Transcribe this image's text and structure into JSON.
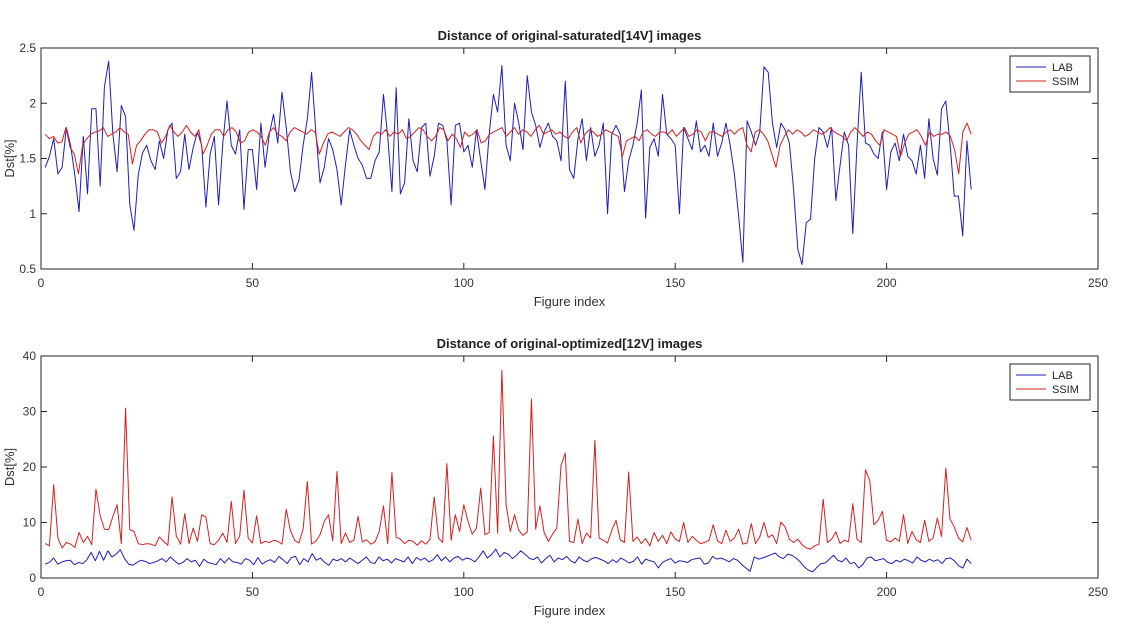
{
  "chart_data": [
    {
      "type": "line",
      "title": "Distance of original-saturated[14V] images",
      "xlabel": "Figure index",
      "ylabel": "Dst[%]",
      "xlim": [
        0,
        250
      ],
      "ylim": [
        0.5,
        2.5
      ],
      "xticks": [
        0,
        50,
        100,
        150,
        200,
        250
      ],
      "yticks": [
        0.5,
        1,
        1.5,
        2,
        2.5
      ],
      "legend": "top-right",
      "grid": false,
      "x_start": 1,
      "x_end": 220,
      "series": [
        {
          "name": "LAB",
          "color": "#1f1fb4",
          "values": [
            1.42,
            1.52,
            1.68,
            1.36,
            1.42,
            1.78,
            1.62,
            1.35,
            1.02,
            1.7,
            1.18,
            1.95,
            1.95,
            1.25,
            2.15,
            2.38,
            1.72,
            1.38,
            1.98,
            1.88,
            1.08,
            0.85,
            1.35,
            1.55,
            1.62,
            1.48,
            1.4,
            1.66,
            1.5,
            1.76,
            1.82,
            1.32,
            1.38,
            1.72,
            1.4,
            1.6,
            1.74,
            1.62,
            1.06,
            1.54,
            1.7,
            1.08,
            1.64,
            2.02,
            1.62,
            1.54,
            1.76,
            1.04,
            1.58,
            1.58,
            1.22,
            1.82,
            1.42,
            1.72,
            1.9,
            1.64,
            2.1,
            1.78,
            1.38,
            1.2,
            1.3,
            1.62,
            1.86,
            2.28,
            1.74,
            1.28,
            1.42,
            1.68,
            1.58,
            1.4,
            1.08,
            1.44,
            1.76,
            1.62,
            1.5,
            1.44,
            1.32,
            1.32,
            1.48,
            1.56,
            2.08,
            1.7,
            1.2,
            2.14,
            1.18,
            1.28,
            1.86,
            1.48,
            1.38,
            1.78,
            1.82,
            1.34,
            1.52,
            1.82,
            1.8,
            1.66,
            1.08,
            1.8,
            1.82,
            1.56,
            1.62,
            1.42,
            1.76,
            1.48,
            1.22,
            1.72,
            2.08,
            1.92,
            2.34,
            1.62,
            1.48,
            2.0,
            1.82,
            1.58,
            2.25,
            1.92,
            1.8,
            1.6,
            1.74,
            1.82,
            1.7,
            1.66,
            1.48,
            2.2,
            1.4,
            1.32,
            1.68,
            1.86,
            1.48,
            1.78,
            1.52,
            1.62,
            1.82,
            1.0,
            1.72,
            1.8,
            1.72,
            1.2,
            1.48,
            1.62,
            1.82,
            2.12,
            0.96,
            1.6,
            1.68,
            1.52,
            2.08,
            1.72,
            1.68,
            1.62,
            1.0,
            1.78,
            1.68,
            1.58,
            1.84,
            1.56,
            1.62,
            1.52,
            1.82,
            1.52,
            1.64,
            1.82,
            1.62,
            1.36,
            0.98,
            0.56,
            1.84,
            1.74,
            1.62,
            1.74,
            2.33,
            2.28,
            1.82,
            1.6,
            1.82,
            1.76,
            1.64,
            1.22,
            0.68,
            0.54,
            0.92,
            0.95,
            1.5,
            1.78,
            1.74,
            1.6,
            1.78,
            1.12,
            1.44,
            1.74,
            1.62,
            0.82,
            1.62,
            2.28,
            1.64,
            1.62,
            1.54,
            1.5,
            1.74,
            1.22,
            1.56,
            1.64,
            1.48,
            1.72,
            1.52,
            1.48,
            1.36,
            1.62,
            1.32,
            1.86,
            1.5,
            1.35,
            1.95,
            2.02,
            1.64,
            1.16,
            1.16,
            0.8,
            1.66,
            1.22
          ]
        },
        {
          "name": "SSIM",
          "color": "#d42020",
          "values": [
            1.72,
            1.68,
            1.7,
            1.64,
            1.65,
            1.78,
            1.6,
            1.54,
            1.36,
            1.62,
            1.68,
            1.72,
            1.74,
            1.75,
            1.78,
            1.7,
            1.72,
            1.74,
            1.78,
            1.74,
            1.72,
            1.45,
            1.62,
            1.66,
            1.72,
            1.76,
            1.76,
            1.74,
            1.64,
            1.7,
            1.8,
            1.74,
            1.7,
            1.74,
            1.8,
            1.74,
            1.7,
            1.76,
            1.54,
            1.62,
            1.72,
            1.76,
            1.76,
            1.7,
            1.76,
            1.78,
            1.74,
            1.64,
            1.66,
            1.74,
            1.76,
            1.74,
            1.7,
            1.62,
            1.74,
            1.78,
            1.72,
            1.7,
            1.66,
            1.74,
            1.78,
            1.76,
            1.74,
            1.72,
            1.76,
            1.74,
            1.54,
            1.64,
            1.72,
            1.74,
            1.72,
            1.7,
            1.74,
            1.78,
            1.76,
            1.72,
            1.66,
            1.62,
            1.58,
            1.7,
            1.74,
            1.72,
            1.76,
            1.7,
            1.74,
            1.72,
            1.76,
            1.68,
            1.7,
            1.74,
            1.78,
            1.76,
            1.7,
            1.66,
            1.7,
            1.78,
            1.76,
            1.66,
            1.72,
            1.68,
            1.6,
            1.74,
            1.7,
            1.72,
            1.76,
            1.64,
            1.66,
            1.72,
            1.74,
            1.76,
            1.78,
            1.7,
            1.74,
            1.78,
            1.72,
            1.76,
            1.74,
            1.7,
            1.76,
            1.8,
            1.72,
            1.74,
            1.76,
            1.72,
            1.74,
            1.7,
            1.68,
            1.74,
            1.78,
            1.64,
            1.72,
            1.76,
            1.74,
            1.7,
            1.72,
            1.76,
            1.74,
            1.72,
            1.7,
            1.52,
            1.66,
            1.68,
            1.7,
            1.66,
            1.74,
            1.76,
            1.72,
            1.7,
            1.74,
            1.74,
            1.72,
            1.76,
            1.7,
            1.74,
            1.78,
            1.7,
            1.72,
            1.76,
            1.74,
            1.66,
            1.74,
            1.74,
            1.72,
            1.7,
            1.74,
            1.76,
            1.72,
            1.76,
            1.78,
            1.62,
            1.56,
            1.74,
            1.76,
            1.72,
            1.66,
            1.54,
            1.42,
            1.62,
            1.7,
            1.76,
            1.72,
            1.76,
            1.74,
            1.7,
            1.72,
            1.76,
            1.74,
            1.72,
            1.74,
            1.78,
            1.74,
            1.72,
            1.7,
            1.66,
            1.74,
            1.78,
            1.74,
            1.7,
            1.74,
            1.72,
            1.66,
            1.62,
            1.76,
            1.74,
            1.72,
            1.7,
            1.52,
            1.64,
            1.72,
            1.74,
            1.76,
            1.7,
            1.62,
            1.74,
            1.7,
            1.72,
            1.72,
            1.74,
            1.7,
            1.58,
            1.36,
            1.74,
            1.82,
            1.72
          ]
        }
      ]
    },
    {
      "type": "line",
      "title": "Distance of original-optimized[12V] images",
      "xlabel": "Figure index",
      "ylabel": "Dst[%]",
      "xlim": [
        0,
        250
      ],
      "ylim": [
        0,
        40
      ],
      "xticks": [
        0,
        50,
        100,
        150,
        200,
        250
      ],
      "yticks": [
        0,
        10,
        20,
        30,
        40
      ],
      "legend": "top-right",
      "grid": false,
      "x_start": 1,
      "x_end": 220,
      "series": [
        {
          "name": "LAB",
          "color": "#1f1fb4",
          "values": [
            2.5,
            2.8,
            3.6,
            2.5,
            2.9,
            3.1,
            3.2,
            2.4,
            2.8,
            2.6,
            3.3,
            4.6,
            3.1,
            4.8,
            3.2,
            4.9,
            3.8,
            4.3,
            5.1,
            3.5,
            2.5,
            2.3,
            2.8,
            3.2,
            3.0,
            2.6,
            2.8,
            3.1,
            3.5,
            2.9,
            3.8,
            3.1,
            2.5,
            2.8,
            3.5,
            2.9,
            3.2,
            2.1,
            3.4,
            2.8,
            2.6,
            2.4,
            3.5,
            2.7,
            3.6,
            2.9,
            2.8,
            2.5,
            3.5,
            3.2,
            2.4,
            3.7,
            2.5,
            3.0,
            3.3,
            2.8,
            3.9,
            3.3,
            2.6,
            3.7,
            3.9,
            2.4,
            3.5,
            2.9,
            4.4,
            3.2,
            3.6,
            2.8,
            2.3,
            3.4,
            3.1,
            3.5,
            2.9,
            3.6,
            3.1,
            2.6,
            3.2,
            3.8,
            2.8,
            2.6,
            3.8,
            3.1,
            3.4,
            2.7,
            3.5,
            3.2,
            2.9,
            3.8,
            2.6,
            3.7,
            3.2,
            3.6,
            2.9,
            3.3,
            4.2,
            3.1,
            3.8,
            2.9,
            3.6,
            3.9,
            3.2,
            3.6,
            3.4,
            2.9,
            3.8,
            4.9,
            3.6,
            4.2,
            5.2,
            3.8,
            4.6,
            4.3,
            3.5,
            4.1,
            4.9,
            4.3,
            3.6,
            3.3,
            3.8,
            2.7,
            3.5,
            4.1,
            2.9,
            3.6,
            3.3,
            3.9,
            3.1,
            2.7,
            3.8,
            3.2,
            2.9,
            3.5,
            3.7,
            3.4,
            3.1,
            2.6,
            3.3,
            2.8,
            3.6,
            3.2,
            2.7,
            3.0,
            3.8,
            2.5,
            3.4,
            3.1,
            2.9,
            1.8,
            2.8,
            3.2,
            3.5,
            2.7,
            3.1,
            3.0,
            2.8,
            3.3,
            3.5,
            3.6,
            2.5,
            2.7,
            3.9,
            3.4,
            3.6,
            3.3,
            2.9,
            3.5,
            3.2,
            2.4,
            1.8,
            1.2,
            3.8,
            3.4,
            3.6,
            3.9,
            4.2,
            4.5,
            3.8,
            3.5,
            4.3,
            4.1,
            3.6,
            2.9,
            2.0,
            1.4,
            1.1,
            1.9,
            2.6,
            2.7,
            3.4,
            4.1,
            3.2,
            2.9,
            3.6,
            2.6,
            2.8,
            1.8,
            2.4,
            3.6,
            3.8,
            3.1,
            3.3,
            3.5,
            2.8,
            2.6,
            3.2,
            2.9,
            3.4,
            3.1,
            2.7,
            3.8,
            3.2,
            2.9,
            3.4,
            3.0,
            3.3,
            2.6,
            3.5,
            3.6,
            3.1,
            2.2,
            1.8,
            3.4,
            2.6
          ]
        },
        {
          "name": "SSIM",
          "color": "#d42020",
          "values": [
            6.2,
            5.8,
            16.8,
            7.2,
            5.4,
            6.4,
            6.1,
            5.5,
            8.2,
            6.4,
            7.5,
            6.0,
            16.0,
            11.2,
            8.8,
            8.7,
            11.1,
            13.2,
            6.2,
            30.6,
            8.7,
            8.4,
            6.2,
            6.0,
            6.2,
            6.1,
            5.8,
            7.4,
            6.6,
            5.9,
            14.6,
            7.6,
            6.1,
            11.6,
            6.2,
            9.0,
            6.6,
            11.4,
            11.0,
            6.2,
            6.0,
            6.8,
            8.1,
            6.4,
            13.8,
            6.2,
            7.6,
            15.8,
            7.2,
            6.3,
            11.2,
            6.2,
            6.6,
            6.4,
            6.8,
            6.6,
            6.1,
            12.4,
            8.5,
            6.8,
            6.3,
            8.8,
            17.4,
            6.1,
            6.6,
            7.8,
            10.2,
            11.4,
            6.7,
            19.2,
            6.2,
            8.1,
            6.4,
            6.8,
            11.1,
            6.5,
            6.9,
            6.1,
            6.5,
            8.4,
            13.0,
            6.2,
            19.0,
            7.4,
            7.0,
            6.2,
            6.8,
            6.6,
            5.9,
            6.7,
            6.1,
            7.0,
            14.6,
            7.2,
            6.4,
            20.6,
            6.8,
            11.4,
            8.4,
            13.2,
            10.2,
            7.9,
            9.0,
            16.2,
            7.8,
            8.2,
            25.6,
            8.1,
            37.4,
            13.3,
            8.4,
            11.4,
            8.6,
            7.7,
            8.3,
            32.2,
            8.8,
            13.0,
            8.2,
            6.6,
            7.9,
            9.0,
            20.3,
            22.5,
            6.6,
            6.4,
            10.6,
            6.2,
            8.1,
            7.2,
            24.8,
            7.2,
            6.8,
            6.3,
            8.6,
            10.4,
            6.9,
            6.4,
            19.1,
            6.6,
            7.4,
            6.2,
            7.1,
            5.8,
            8.2,
            6.6,
            7.7,
            6.2,
            8.3,
            7.0,
            6.6,
            10.0,
            6.4,
            7.5,
            6.8,
            6.2,
            6.4,
            6.8,
            9.6,
            6.7,
            6.2,
            8.6,
            6.6,
            7.2,
            8.8,
            6.1,
            6.3,
            9.8,
            6.2,
            7.4,
            10.0,
            7.3,
            7.8,
            6.2,
            10.1,
            9.2,
            7.0,
            6.4,
            7.0,
            6.0,
            5.4,
            5.2,
            5.8,
            6.1,
            14.2,
            6.4,
            7.0,
            8.3,
            6.2,
            6.8,
            6.5,
            13.4,
            7.0,
            6.4,
            19.5,
            17.6,
            9.6,
            10.4,
            12.0,
            6.8,
            6.5,
            7.2,
            6.6,
            11.4,
            6.2,
            8.4,
            6.9,
            6.4,
            10.4,
            6.6,
            7.2,
            10.8,
            7.5,
            19.8,
            10.6,
            9.2,
            7.2,
            6.5,
            9.1,
            6.8
          ]
        }
      ]
    }
  ]
}
